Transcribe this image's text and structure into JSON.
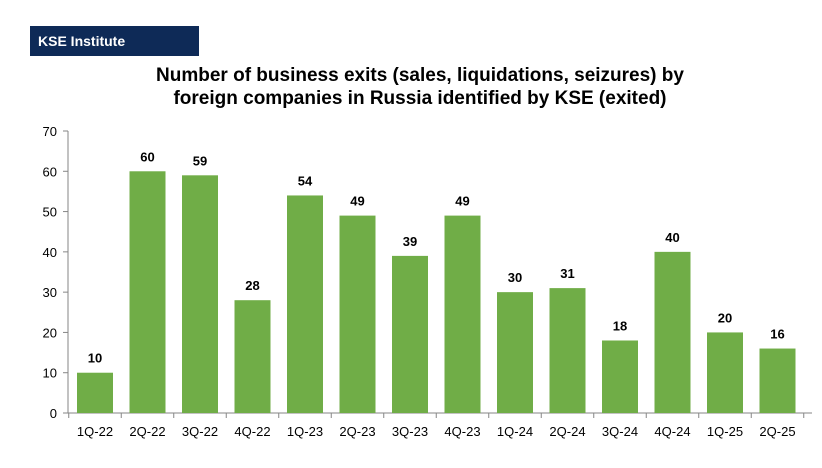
{
  "brand": {
    "label": "KSE Institute"
  },
  "colors": {
    "bar": "#70ad47",
    "brand_bg": "#0e2a57"
  },
  "chart_data": {
    "type": "bar",
    "title_lines": [
      "Number of business exits (sales, liquidations, seizures) by",
      "foreign companies in Russia identified by KSE (exited)"
    ],
    "categories": [
      "1Q-22",
      "2Q-22",
      "3Q-22",
      "4Q-22",
      "1Q-23",
      "2Q-23",
      "3Q-23",
      "4Q-23",
      "1Q-24",
      "2Q-24",
      "3Q-24",
      "4Q-24",
      "1Q-25",
      "2Q-25"
    ],
    "values": [
      10,
      60,
      59,
      28,
      54,
      49,
      39,
      49,
      30,
      31,
      18,
      40,
      20,
      16
    ],
    "ylim": [
      0,
      70
    ],
    "yticks": [
      0,
      10,
      20,
      30,
      40,
      50,
      60,
      70
    ],
    "grid": false,
    "legend": "none",
    "data_labels": true
  }
}
